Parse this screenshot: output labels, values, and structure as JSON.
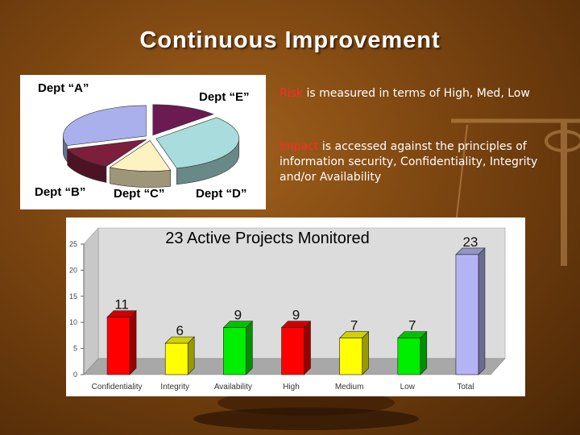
{
  "slide": {
    "title": "Continuous Improvement",
    "notes": [
      {
        "highlight": "Risk",
        "text": " is measured in terms of High, Med, Low"
      },
      {
        "highlight": "Impact",
        "text": " is accessed against the principles of information security, Confidentiality, Integrity and/or Availability"
      }
    ]
  },
  "colors": {
    "highlight": "#ff2a2a"
  },
  "chart_data": [
    {
      "type": "pie",
      "title": "",
      "categories": [
        "Dept “A”",
        "Dept “B”",
        "Dept “C”",
        "Dept “D”",
        "Dept “E”"
      ],
      "values": [
        13,
        33,
        12,
        12,
        30
      ],
      "colors": [
        "#6b1a52",
        "#a9dcdc",
        "#fff2c2",
        "#7b1f3c",
        "#a9b0ec"
      ],
      "legend": "none"
    },
    {
      "type": "bar",
      "title": "23 Active Projects Monitored",
      "categories": [
        "Confidentiality",
        "Integrity",
        "Availability",
        "High",
        "Medium",
        "Low",
        "Total"
      ],
      "values": [
        11,
        6,
        9,
        9,
        7,
        7,
        23
      ],
      "data_labels": [
        "11",
        "6",
        "9",
        "9",
        "7",
        "7",
        "23"
      ],
      "colors": [
        "#ff0000",
        "#ffff00",
        "#00ee00",
        "#ff0000",
        "#ffff00",
        "#00ee00",
        "#b4b4f4"
      ],
      "ylim": [
        0,
        25
      ],
      "yticks": [
        0,
        5,
        10,
        15,
        20,
        25
      ],
      "xlabel": "",
      "ylabel": "",
      "grid": false,
      "legend": "none"
    }
  ]
}
